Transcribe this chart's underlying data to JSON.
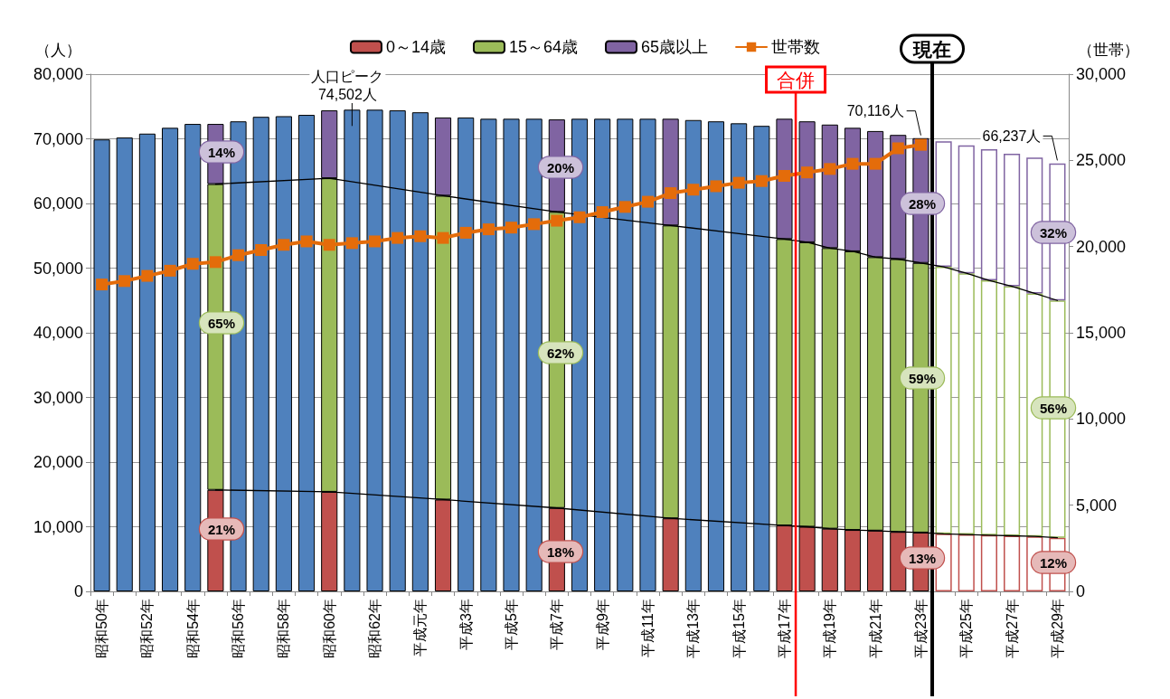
{
  "chart_data": {
    "type": "bar",
    "stacked": true,
    "ylabel": "（人）",
    "y2label": "（世帯）",
    "categories": [
      "昭和50年",
      null,
      "昭和52年",
      null,
      "昭和54年",
      null,
      "昭和56年",
      null,
      "昭和58年",
      null,
      "昭和60年",
      null,
      "昭和62年",
      null,
      "平成元年",
      null,
      "平成3年",
      null,
      "平成5年",
      null,
      "平成7年",
      null,
      "平成9年",
      null,
      "平成11年",
      null,
      "平成13年",
      null,
      "平成15年",
      null,
      "平成17年",
      null,
      "平成19年",
      null,
      "平成21年",
      null,
      "平成23年",
      null,
      "平成25年",
      null,
      "平成27年",
      null,
      "平成29年"
    ],
    "series": [
      {
        "name": "0～14歳",
        "color": "#c0504d",
        "values": [
          null,
          null,
          null,
          null,
          null,
          15700,
          null,
          null,
          null,
          null,
          15400,
          null,
          null,
          null,
          null,
          14200,
          null,
          null,
          null,
          null,
          12900,
          null,
          null,
          null,
          null,
          11300,
          null,
          null,
          null,
          null,
          10200,
          10000,
          9700,
          9500,
          9400,
          9200,
          9100,
          null,
          null,
          null,
          null,
          null,
          null
        ]
      },
      {
        "name": "15～64歳",
        "color": "#9bbb59",
        "values": [
          null,
          null,
          null,
          null,
          null,
          47300,
          null,
          null,
          null,
          null,
          48500,
          null,
          null,
          null,
          null,
          47000,
          null,
          null,
          null,
          null,
          45800,
          null,
          null,
          null,
          null,
          45300,
          null,
          null,
          null,
          null,
          44300,
          44000,
          43400,
          43100,
          42300,
          42200,
          41700,
          null,
          null,
          null,
          null,
          null,
          null
        ]
      },
      {
        "name": "65歳以上",
        "color": "#8064a2",
        "values": [
          null,
          null,
          null,
          null,
          null,
          9300,
          null,
          null,
          null,
          null,
          10500,
          null,
          null,
          null,
          null,
          12100,
          null,
          null,
          null,
          null,
          14300,
          null,
          null,
          null,
          null,
          16500,
          null,
          null,
          null,
          null,
          18600,
          18700,
          19100,
          19100,
          19500,
          19200,
          19300,
          null,
          null,
          null,
          null,
          null,
          null
        ]
      },
      {
        "color": "#c0504d",
        "values": [
          null,
          null,
          null,
          null,
          null,
          null,
          null,
          null,
          null,
          null,
          null,
          null,
          null,
          null,
          null,
          null,
          null,
          null,
          null,
          null,
          null,
          null,
          null,
          null,
          null,
          null,
          null,
          null,
          null,
          null,
          null,
          null,
          null,
          null,
          null,
          null,
          null,
          8900,
          8800,
          8700,
          8600,
          8500,
          8300
        ]
      },
      {
        "color": "#9bbb59",
        "values": [
          null,
          null,
          null,
          null,
          null,
          null,
          null,
          null,
          null,
          null,
          null,
          null,
          null,
          null,
          null,
          null,
          null,
          null,
          null,
          null,
          null,
          null,
          null,
          null,
          null,
          null,
          null,
          null,
          null,
          null,
          null,
          null,
          null,
          null,
          null,
          null,
          null,
          41300,
          40400,
          39400,
          38600,
          37600,
          36700
        ]
      },
      {
        "color": "#8064a2",
        "values": [
          null,
          null,
          null,
          null,
          null,
          null,
          null,
          null,
          null,
          null,
          null,
          null,
          null,
          null,
          null,
          null,
          null,
          null,
          null,
          null,
          null,
          null,
          null,
          null,
          null,
          null,
          null,
          null,
          null,
          null,
          null,
          null,
          null,
          null,
          null,
          null,
          null,
          19400,
          19800,
          20300,
          20500,
          21000,
          21200
        ]
      },
      {
        "color": "#4f81bd",
        "values": [
          69900,
          70200,
          70800,
          71700,
          72300,
          null,
          72700,
          73400,
          73500,
          73700,
          null,
          74502,
          74500,
          74400,
          74100,
          null,
          73300,
          73100,
          73100,
          73100,
          null,
          73100,
          73100,
          73100,
          73100,
          null,
          72900,
          72700,
          72400,
          72000,
          null,
          null,
          null,
          null,
          null,
          null,
          null,
          null,
          null,
          null,
          null,
          null,
          null
        ]
      },
      {
        "type": "line",
        "color": "#000000",
        "marker": "none",
        "values": [
          null,
          null,
          null,
          null,
          null,
          15700,
          null,
          null,
          null,
          null,
          15400,
          null,
          null,
          null,
          null,
          14200,
          null,
          null,
          null,
          null,
          12900,
          null,
          null,
          null,
          null,
          11300,
          null,
          null,
          null,
          null,
          10200,
          10000,
          9700,
          9500,
          9400,
          9200,
          9100,
          8900,
          8800,
          8700,
          8600,
          8500,
          8300
        ]
      },
      {
        "type": "line",
        "color": "#000000",
        "marker": "none",
        "values": [
          null,
          null,
          null,
          null,
          null,
          63000,
          null,
          null,
          null,
          null,
          63900,
          null,
          null,
          null,
          null,
          61200,
          null,
          null,
          null,
          null,
          58700,
          null,
          null,
          null,
          null,
          56600,
          null,
          null,
          null,
          null,
          54500,
          54000,
          53100,
          52600,
          51700,
          51400,
          50800,
          50200,
          49200,
          48100,
          47200,
          46100,
          45000
        ]
      },
      {
        "type": "line",
        "name": "世帯数",
        "color": "#e46c0a",
        "axis": "y2",
        "marker": "square",
        "values": [
          17800,
          18000,
          18300,
          18600,
          19000,
          19100,
          19500,
          19800,
          20100,
          20300,
          20100,
          20200,
          20300,
          20500,
          20600,
          20500,
          20800,
          21000,
          21100,
          21300,
          21500,
          21700,
          22000,
          22300,
          22600,
          23100,
          23300,
          23500,
          23700,
          23800,
          24100,
          24300,
          24500,
          24800,
          24800,
          25700,
          25900,
          null,
          null,
          null,
          null,
          null,
          null
        ]
      }
    ],
    "ylim": [
      0,
      80000
    ],
    "yticks": [
      0,
      {
        "value": 10000,
        "label": "10,000"
      },
      {
        "value": 20000,
        "label": "20,000"
      },
      {
        "value": 30000,
        "label": "30,000"
      },
      {
        "value": 40000,
        "label": "40,000"
      },
      {
        "value": 50000,
        "label": "50,000"
      },
      {
        "value": 60000,
        "label": "60,000"
      },
      {
        "value": 70000,
        "label": "70,000"
      },
      {
        "value": 80000,
        "label": "80,000"
      }
    ],
    "y2lim": [
      0,
      30000
    ],
    "y2ticks": [
      0,
      {
        "value": 5000,
        "label": "5,000"
      },
      {
        "value": 10000,
        "label": "10,000"
      },
      {
        "value": 15000,
        "label": "15,000"
      },
      {
        "value": 20000,
        "label": "20,000"
      },
      {
        "value": 25000,
        "label": "25,000"
      },
      {
        "value": 30000,
        "label": "30,000"
      }
    ],
    "grid": "y",
    "legend": "top",
    "ref_lines": [
      {
        "axis": "x",
        "value": "平成17年",
        "label": "合併",
        "color": "#ff0000"
      },
      {
        "axis": "x",
        "value": "平成23年",
        "label": "現在",
        "color": "#000000"
      }
    ],
    "annotations": [
      "人口ピーク\n74,502人",
      {
        "text": "70,116人",
        "x": "平成23年",
        "y": 70116
      },
      {
        "text": "66,237人",
        "x": "平成29年",
        "y": 66237
      },
      "21%",
      "65%",
      "14%",
      "18%",
      "62%",
      "20%",
      "13%",
      "59%",
      "28%",
      "12%",
      "56%",
      "32%"
    ]
  }
}
